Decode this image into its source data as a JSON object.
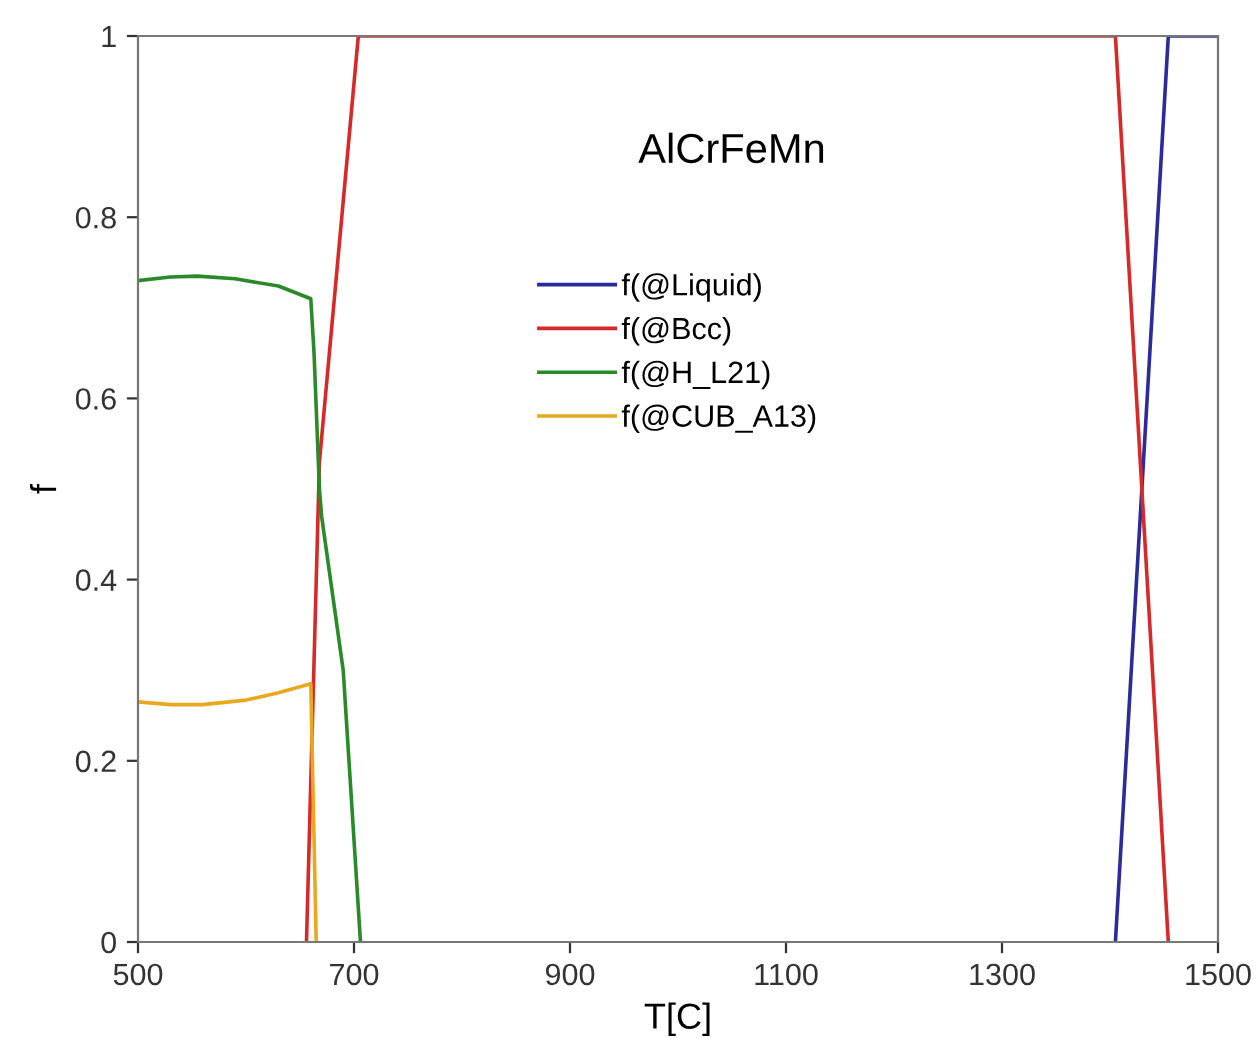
{
  "chart_data": {
    "type": "line",
    "title": "AlCrFeMn",
    "xlabel": "T[C]",
    "ylabel": "f",
    "xlim": [
      500,
      1500
    ],
    "xticks": [
      500,
      700,
      900,
      1100,
      1300,
      1500
    ],
    "ylim": [
      0,
      1
    ],
    "yticks": [
      0,
      0.2,
      0.4,
      0.6,
      0.8,
      1
    ],
    "grid": false,
    "legend": "center",
    "marker": "none",
    "line_style": "solid",
    "series": [
      {
        "name": "f(@Liquid)",
        "color": "#2b2b9b",
        "x": [
          1405,
          1454,
          1500
        ],
        "values": [
          0,
          1,
          1
        ]
      },
      {
        "name": "f(@Bcc)",
        "color": "#d62a2a",
        "x": [
          656,
          668,
          704,
          1405,
          1454
        ],
        "values": [
          0,
          0.53,
          1,
          1,
          0
        ]
      },
      {
        "name": "f(@H_L21)",
        "color": "#2a8a2a",
        "x": [
          500,
          530,
          555,
          590,
          630,
          660,
          663,
          668,
          670,
          690,
          706
        ],
        "values": [
          0.73,
          0.734,
          0.735,
          0.732,
          0.724,
          0.71,
          0.65,
          0.5,
          0.47,
          0.3,
          0
        ]
      },
      {
        "name": "f(@CUB_A13)",
        "color": "#e8a820",
        "x": [
          500,
          530,
          560,
          600,
          630,
          660,
          665
        ],
        "values": [
          0.265,
          0.262,
          0.262,
          0.267,
          0.275,
          0.285,
          0
        ]
      }
    ]
  }
}
